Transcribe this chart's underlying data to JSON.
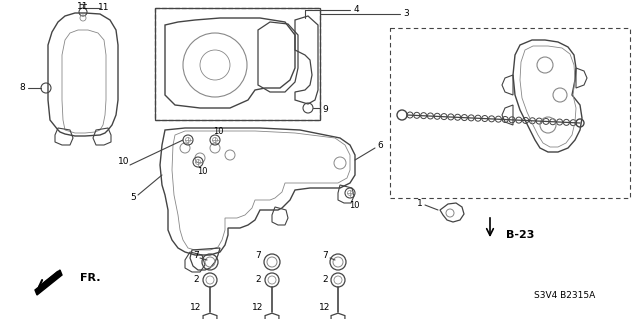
{
  "background_color": "#ffffff",
  "code_label": "S3V4 B2315A",
  "line_color": "#444444",
  "gray": "#888888"
}
